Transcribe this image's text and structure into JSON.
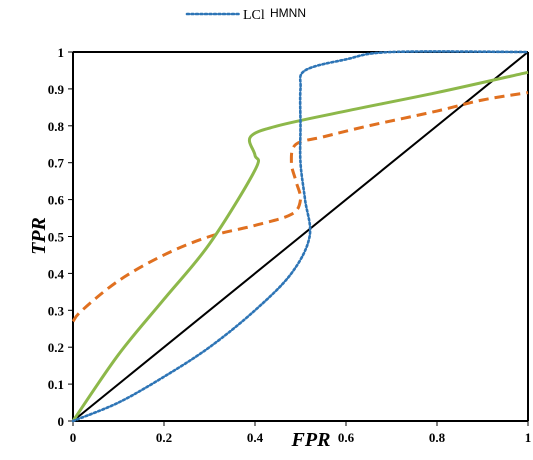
{
  "chart_data": {
    "type": "line",
    "xlabel": "FPR",
    "ylabel": "TPR",
    "xlim": [
      0,
      1
    ],
    "ylim": [
      0,
      1
    ],
    "x_ticks": [
      "0",
      "0.2",
      "0.4",
      "0.6",
      "0.8",
      "1"
    ],
    "y_ticks": [
      "0",
      "0.1",
      "0.2",
      "0.3",
      "0.4",
      "0.5",
      "0.6",
      "0.7",
      "0.8",
      "0.9",
      "1"
    ],
    "legend_position": "top-center",
    "legend": [
      {
        "label": "LCl",
        "color": "#2e75b6",
        "dash": "dotted"
      },
      {
        "label": "HMNN",
        "color": "#000000",
        "dash": "none"
      }
    ],
    "series": [
      {
        "name": "LCl",
        "color": "#2e75b6",
        "dash": "dotted",
        "points": [
          [
            0,
            0
          ],
          [
            0.1,
            0.05
          ],
          [
            0.2,
            0.12
          ],
          [
            0.3,
            0.2
          ],
          [
            0.4,
            0.3
          ],
          [
            0.48,
            0.4
          ],
          [
            0.52,
            0.5
          ],
          [
            0.51,
            0.6
          ],
          [
            0.5,
            0.7
          ],
          [
            0.5,
            0.8
          ],
          [
            0.5,
            0.9
          ],
          [
            0.51,
            0.95
          ],
          [
            0.6,
            0.98
          ],
          [
            0.7,
            1.0
          ],
          [
            1,
            1
          ]
        ]
      },
      {
        "name": "",
        "color": "#e07020",
        "dash": "dashed",
        "points": [
          [
            0,
            0.27
          ],
          [
            0.02,
            0.3
          ],
          [
            0.1,
            0.38
          ],
          [
            0.2,
            0.45
          ],
          [
            0.3,
            0.5
          ],
          [
            0.4,
            0.53
          ],
          [
            0.48,
            0.56
          ],
          [
            0.5,
            0.6
          ],
          [
            0.49,
            0.65
          ],
          [
            0.48,
            0.7
          ],
          [
            0.49,
            0.75
          ],
          [
            0.55,
            0.77
          ],
          [
            0.65,
            0.8
          ],
          [
            0.8,
            0.84
          ],
          [
            0.9,
            0.87
          ],
          [
            1,
            0.89
          ]
        ]
      },
      {
        "name": "",
        "color": "#8db84a",
        "dash": "solid",
        "points": [
          [
            0,
            0
          ],
          [
            0.1,
            0.18
          ],
          [
            0.2,
            0.33
          ],
          [
            0.3,
            0.48
          ],
          [
            0.4,
            0.68
          ],
          [
            0.4,
            0.72
          ],
          [
            0.39,
            0.77
          ],
          [
            0.45,
            0.8
          ],
          [
            0.6,
            0.84
          ],
          [
            0.8,
            0.89
          ],
          [
            1,
            0.945
          ]
        ]
      },
      {
        "name": "HMNN",
        "color": "#000000",
        "dash": "solid",
        "points": [
          [
            0,
            0
          ],
          [
            1,
            1
          ]
        ]
      }
    ]
  }
}
